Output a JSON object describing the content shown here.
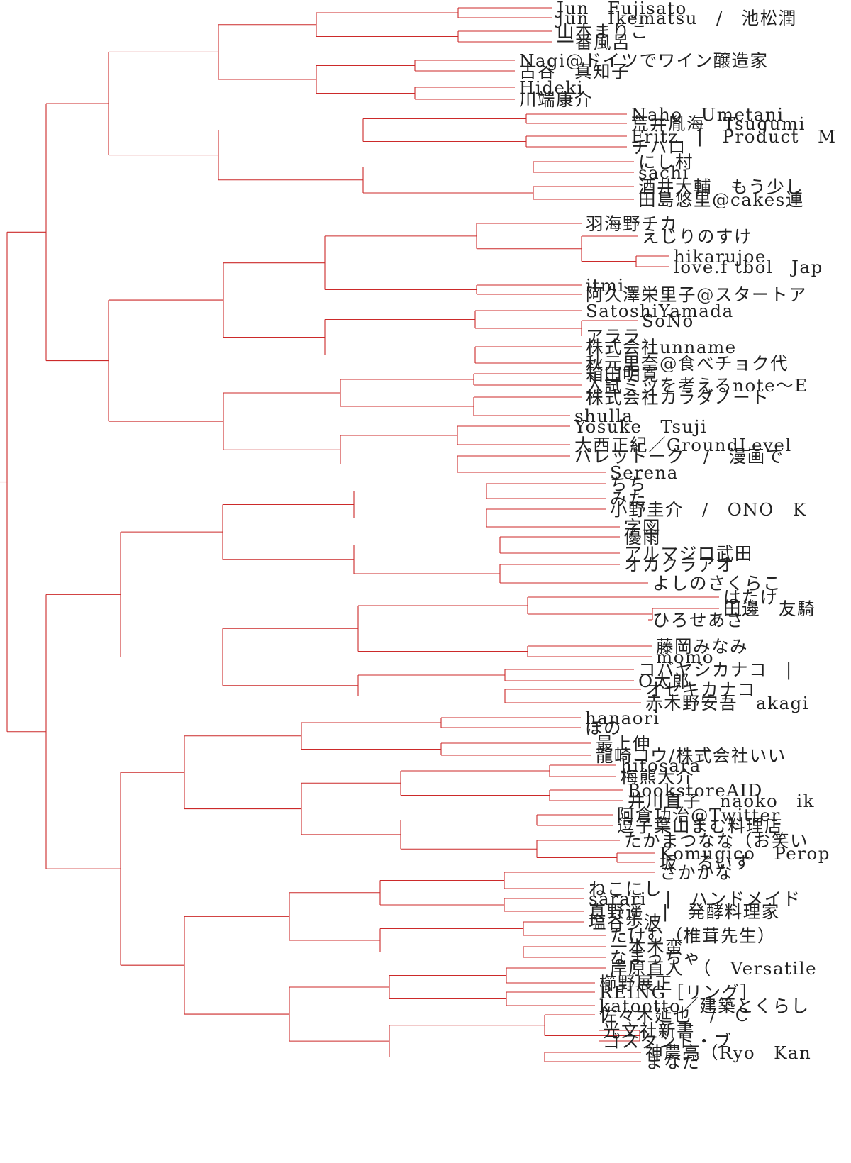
{
  "diagram": {
    "type": "dendrogram",
    "line_color": "#cc2a2a",
    "text_color": "#222222",
    "labels": [
      "Jun　Fujisato",
      "Jun　Ikematsu　/　池松潤",
      "山本まりこ",
      "一番風呂",
      "Nagi@ドイツでワイン醸造家",
      "古谷　真知子",
      "Hideki",
      "川端康介",
      "Naho　Umetani",
      "荒井胤海　Tsugumi",
      "Fritz　|　Product　M",
      "チハロ",
      "にし村",
      "sachi",
      "酒井大輔　もう少し",
      "田島悠里@cakes連",
      "羽海野チカ",
      "えじりのすけ",
      "hikarujoe",
      "love.f tbol　Jap",
      "itmi",
      "阿久澤栄里子@スタートア",
      "SatoshiYamada",
      "SoNo",
      "アララ",
      "株式会社unname",
      "秋元里奈@食べチョク代",
      "箱田明寛",
      "入試ミッを考えるnote〜E",
      "株式会社カラダノート",
      "shulla",
      "Yosuke　Tsuji",
      "大西正紀／GroundLevel",
      "パレットーク　/　漫画で",
      "Serena",
      "ちち",
      "みた",
      "小野圭介　/　ONO　K",
      "字図",
      "優雨",
      "アルマジロ武田",
      "オカクラアオ",
      "よしのさくらこ",
      "はたけ",
      "田邊　友騎",
      "ひろせあさ",
      "藤岡みなみ",
      "momo",
      "コバヤシカナコ　|",
      "O太郎",
      "オゼキカナコ",
      "赤木野安吾　akagi",
      "hanaori",
      "ほの",
      "最上伸",
      "龍崎コウ/株式会社いい",
      "hitosara",
      "梅熊大介",
      "BookstoreAID",
      "井川直子　naoko　ik",
      "阿倉功治@Twitter",
      "逗子葉山まむ料理店",
      "たかまつなな（お笑い",
      "Komugico　Perop",
      "坂　るいす",
      "さかかな",
      "ねこにし",
      "sarari　|　ハンドメイド",
      "真野遥　|　発酵料理家",
      "塩谷歩波",
      "たけむ（椎茸先生）",
      "一本木蛮",
      "なまっちゃ",
      "岸原直人　（　Versatile",
      "櫛野展正",
      "REING［リング］",
      "katootto／建築とくらし",
      "佐々木延也　/　C",
      "光文社新書",
      "ゴスタント・ブ",
      "神農亮（Ryo　Kan",
      "まなだ"
    ]
  }
}
